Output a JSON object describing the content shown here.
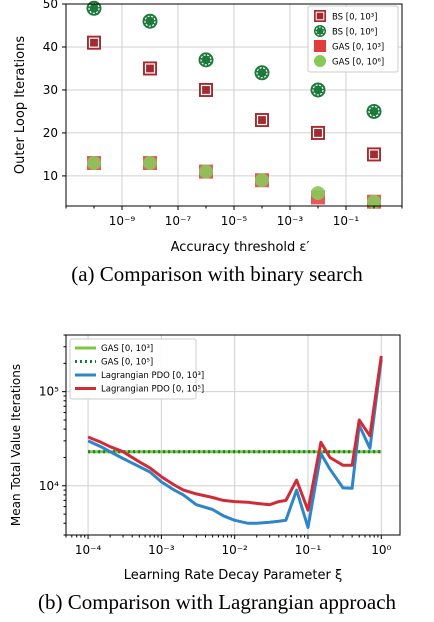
{
  "captions": {
    "a": "(a) Comparison with binary search",
    "b": "(b) Comparison with Lagrangian approach"
  },
  "chart_data": [
    {
      "type": "scatter",
      "xlabel": "Accuracy threshold ε′",
      "ylabel": "Outer Loop Iterations",
      "xscale": "log",
      "xlim": [
        1e-11,
        10
      ],
      "ylim": [
        3,
        50
      ],
      "yticks": [
        10,
        20,
        30,
        40,
        50
      ],
      "xticks": [
        {
          "v": 1e-09,
          "label": "10⁻⁹"
        },
        {
          "v": 1e-07,
          "label": "10⁻⁷"
        },
        {
          "v": 1e-05,
          "label": "10⁻⁵"
        },
        {
          "v": 0.001,
          "label": "10⁻³"
        },
        {
          "v": 0.1,
          "label": "10⁻¹"
        }
      ],
      "grid": true,
      "legend_position": "top-right",
      "x": [
        1e-10,
        1e-08,
        1e-06,
        0.0001,
        0.01,
        1
      ],
      "series": [
        {
          "name": "BS [0, 10³]",
          "marker": "square-hollow",
          "color": "#a32a2e",
          "values": [
            41,
            35,
            30,
            23,
            20,
            15
          ]
        },
        {
          "name": "BS [0, 10⁶]",
          "marker": "circle-hollow",
          "color": "#1d7a3c",
          "values": [
            49,
            46,
            37,
            34,
            30,
            25
          ]
        },
        {
          "name": "GAS [0, 10³]",
          "marker": "square",
          "color": "#e03c3c",
          "values": [
            13,
            13,
            11,
            9,
            5,
            4
          ]
        },
        {
          "name": "GAS [0, 10⁶]",
          "marker": "circle",
          "color": "#8ac65a",
          "values": [
            13,
            13,
            11,
            9,
            6,
            4
          ]
        }
      ]
    },
    {
      "type": "line",
      "xlabel": "Learning Rate Decay Parameter ξ",
      "ylabel": "Mean Total Value Iterations",
      "xscale": "log",
      "yscale": "log",
      "xlim": [
        5e-05,
        1.8
      ],
      "ylim": [
        3000,
        400000
      ],
      "xticks": [
        {
          "v": 0.0001,
          "label": "10⁻⁴"
        },
        {
          "v": 0.001,
          "label": "10⁻³"
        },
        {
          "v": 0.01,
          "label": "10⁻²"
        },
        {
          "v": 0.1,
          "label": "10⁻¹"
        },
        {
          "v": 1,
          "label": "10⁰"
        }
      ],
      "yticks": [
        {
          "v": 10000,
          "label": "10⁴"
        },
        {
          "v": 100000,
          "label": "10⁵"
        }
      ],
      "grid": true,
      "legend_position": "top-left",
      "x": [
        0.0001,
        0.00015,
        0.0002,
        0.0003,
        0.0005,
        0.0007,
        0.001,
        0.0015,
        0.002,
        0.003,
        0.005,
        0.007,
        0.01,
        0.015,
        0.02,
        0.03,
        0.04,
        0.05,
        0.07,
        0.1,
        0.15,
        0.2,
        0.3,
        0.4,
        0.5,
        0.7,
        1.0
      ],
      "series": [
        {
          "name": "GAS [0, 10³]",
          "style": "solid",
          "color": "#7cc644",
          "values": [
            23000,
            23000,
            23000,
            23000,
            23000,
            23000,
            23000,
            23000,
            23000,
            23000,
            23000,
            23000,
            23000,
            23000,
            23000,
            23000,
            23000,
            23000,
            23000,
            23000,
            23000,
            23000,
            23000,
            23000,
            23000,
            23000,
            23000
          ]
        },
        {
          "name": "GAS [0, 10⁵]",
          "style": "dotted",
          "color": "#1e7a3c",
          "values": [
            23000,
            23000,
            23000,
            23000,
            23000,
            23000,
            23000,
            23000,
            23000,
            23000,
            23000,
            23000,
            23000,
            23000,
            23000,
            23000,
            23000,
            23000,
            23000,
            23000,
            23000,
            23000,
            23000,
            23000,
            23000,
            23000,
            23000
          ]
        },
        {
          "name": "Lagrangian PDO [0, 10³]",
          "style": "solid",
          "color": "#2e86c8",
          "values": [
            30000,
            26000,
            23000,
            19500,
            16000,
            14000,
            11000,
            9000,
            8000,
            6300,
            5600,
            4800,
            4300,
            4000,
            4000,
            4100,
            4200,
            4300,
            9000,
            3600,
            22000,
            15000,
            9500,
            9400,
            44000,
            25000,
            220000
          ]
        },
        {
          "name": "Lagrangian PDO [0, 10⁵]",
          "style": "solid",
          "color": "#d02c38",
          "values": [
            33000,
            29000,
            26000,
            23000,
            18000,
            15500,
            12500,
            10200,
            9000,
            8200,
            7500,
            7000,
            6800,
            6700,
            6500,
            6300,
            6800,
            7000,
            11500,
            5500,
            29000,
            20000,
            16500,
            16500,
            50000,
            34000,
            240000
          ]
        }
      ]
    }
  ]
}
